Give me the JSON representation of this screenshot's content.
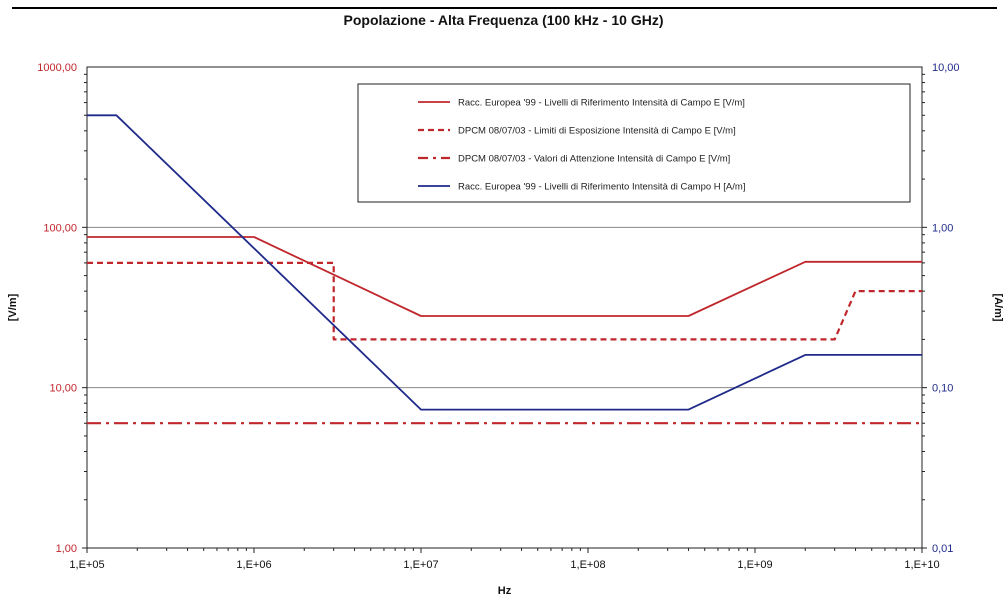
{
  "chart_data": {
    "type": "line",
    "title": "Popolazione - Alta Frequenza (100 kHz - 10 GHz)",
    "xlabel": "Hz",
    "ylabel_left": "[V/m]",
    "ylabel_right": "[A/m]",
    "xscale": "log",
    "yscale_left": "log",
    "yscale_right": "log",
    "xlim": [
      100000,
      10000000000
    ],
    "ylim_left": [
      1,
      1000
    ],
    "ylim_right": [
      0.01,
      10
    ],
    "x_ticks": [
      100000,
      1000000,
      10000000,
      100000000,
      1000000000,
      10000000000
    ],
    "x_tick_labels": [
      "1,E+05",
      "1,E+06",
      "1,E+07",
      "1,E+08",
      "1,E+09",
      "1,E+10"
    ],
    "y_left_ticks": [
      1,
      10,
      100,
      1000
    ],
    "y_left_tick_labels": [
      "1,00",
      "10,00",
      "100,00",
      "1000,00"
    ],
    "y_right_ticks": [
      0.01,
      0.1,
      1,
      10
    ],
    "y_right_tick_labels": [
      "0,01",
      "0,10",
      "1,00",
      "10,00"
    ],
    "grid": "horizontal major lines",
    "legend_position": "top-right",
    "series": [
      {
        "name": "Racc. Europea '99 - Livelli di Riferimento Intensità di Campo E [V/m]",
        "axis": "left",
        "style": "solid",
        "color": "#c0272d",
        "x": [
          100000,
          1000000,
          10000000,
          400000000,
          2000000000,
          10000000000
        ],
        "y": [
          87,
          87,
          28,
          28,
          61,
          61
        ]
      },
      {
        "name": "DPCM 08/07/03 - Limiti di Esposizione Intensità di Campo E [V/m]",
        "axis": "left",
        "style": "dashed",
        "color": "#c0272d",
        "x": [
          100000,
          3000000,
          3000000,
          3000000000,
          4000000000,
          10000000000
        ],
        "y": [
          60,
          60,
          20,
          20,
          40,
          40
        ]
      },
      {
        "name": "DPCM 08/07/03 - Valori di Attenzione Intensità di Campo E [V/m]",
        "axis": "left",
        "style": "dashdot",
        "color": "#c0272d",
        "x": [
          100000,
          10000000000
        ],
        "y": [
          6,
          6
        ]
      },
      {
        "name": "Racc. Europea '99 - Livelli di Riferimento Intensità di Campo H [A/m]",
        "axis": "right",
        "style": "solid",
        "color": "#1f2a8a",
        "x": [
          100000,
          150000,
          10000000,
          400000000,
          2000000000,
          10000000000
        ],
        "y": [
          5,
          5,
          0.073,
          0.073,
          0.16,
          0.16
        ]
      }
    ]
  }
}
